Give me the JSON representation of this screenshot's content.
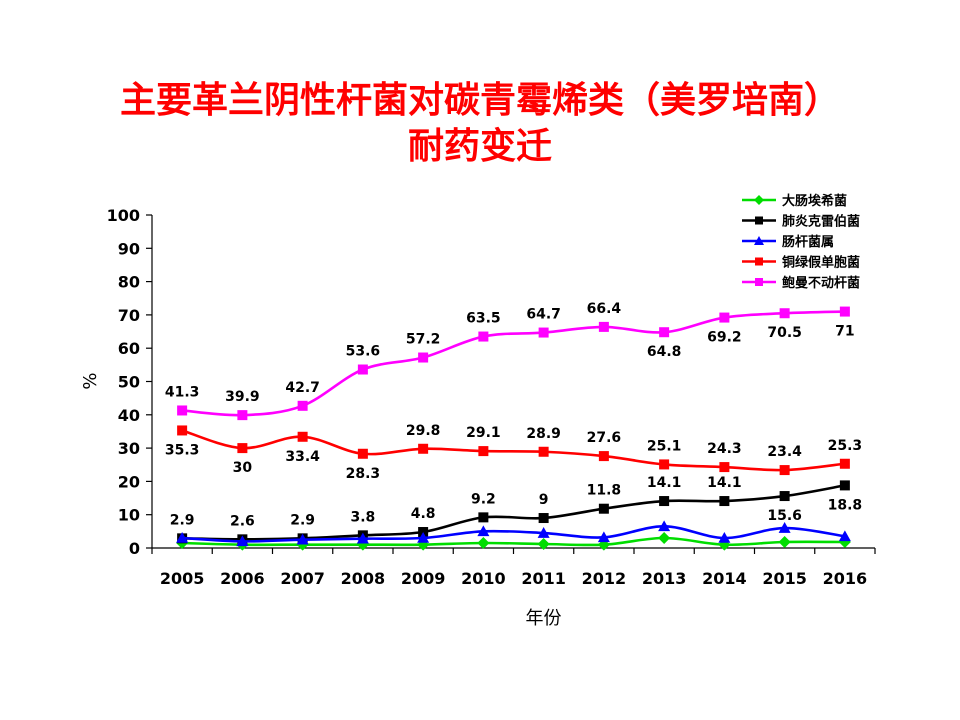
{
  "chart_data": {
    "type": "line",
    "title": [
      "主要革兰阴性杆菌对碳青霉烯类（美罗培南）",
      "耐药变迁"
    ],
    "xlabel": "年份",
    "ylabel": "%",
    "ylim": [
      0,
      100
    ],
    "yticks": [
      0,
      10,
      20,
      30,
      40,
      50,
      60,
      70,
      80,
      90,
      100
    ],
    "categories": [
      "2005",
      "2006",
      "2007",
      "2008",
      "2009",
      "2010",
      "2011",
      "2012",
      "2013",
      "2014",
      "2015",
      "2016"
    ],
    "legend_position": "top-right",
    "series": [
      {
        "name": "大肠埃希菌",
        "color": "#00dd00",
        "marker": "diamond",
        "values": [
          1.5,
          1.0,
          1.0,
          1.0,
          1.0,
          1.5,
          1.2,
          1.0,
          3.0,
          1.0,
          1.8,
          1.8
        ],
        "labels": [
          null,
          null,
          null,
          null,
          null,
          null,
          null,
          null,
          null,
          null,
          null,
          null
        ]
      },
      {
        "name": "肺炎克雷伯菌",
        "color": "#000000",
        "marker": "square",
        "values": [
          2.9,
          2.6,
          2.9,
          3.8,
          4.8,
          9.2,
          9.0,
          11.8,
          14.1,
          14.1,
          15.6,
          18.8
        ],
        "labels": [
          "2.9",
          "2.6",
          "2.9",
          "3.8",
          "4.8",
          "9.2",
          "9",
          "11.8",
          "14.1",
          "14.1",
          "15.6",
          "18.8"
        ],
        "label_pos": [
          "above",
          "above",
          "above",
          "above",
          "above",
          "above",
          "above",
          "above",
          "above",
          "above",
          "below",
          "below"
        ]
      },
      {
        "name": "肠杆菌属",
        "color": "#0000ff",
        "marker": "triangle",
        "values": [
          3.0,
          2.0,
          2.5,
          2.8,
          3.0,
          5.0,
          4.5,
          3.2,
          6.5,
          3.0,
          6.0,
          3.5
        ],
        "labels": [
          null,
          null,
          null,
          null,
          null,
          null,
          null,
          null,
          null,
          null,
          null,
          null
        ]
      },
      {
        "name": "铜绿假单胞菌",
        "color": "#ff0000",
        "marker": "square",
        "values": [
          35.3,
          30,
          33.4,
          28.3,
          29.8,
          29.1,
          28.9,
          27.6,
          25.1,
          24.3,
          23.4,
          25.3
        ],
        "labels": [
          "35.3",
          "30",
          "33.4",
          "28.3",
          "29.8",
          "29.1",
          "28.9",
          "27.6",
          "25.1",
          "24.3",
          "23.4",
          "25.3"
        ],
        "label_pos": [
          "below",
          "below",
          "below",
          "below",
          "above",
          "above",
          "above",
          "above",
          "above",
          "above",
          "above",
          "above"
        ]
      },
      {
        "name": "鲍曼不动杆菌",
        "color": "#ff00ff",
        "marker": "square",
        "values": [
          41.3,
          39.9,
          42.7,
          53.6,
          57.2,
          63.5,
          64.7,
          66.4,
          64.8,
          69.2,
          70.5,
          71
        ],
        "labels": [
          "41.3",
          "39.9",
          "42.7",
          "53.6",
          "57.2",
          "63.5",
          "64.7",
          "66.4",
          "64.8",
          "69.2",
          "70.5",
          "71"
        ],
        "label_pos": [
          "above",
          "above",
          "above",
          "above",
          "above",
          "above",
          "above",
          "above",
          "below",
          "below",
          "below",
          "below"
        ]
      }
    ]
  }
}
